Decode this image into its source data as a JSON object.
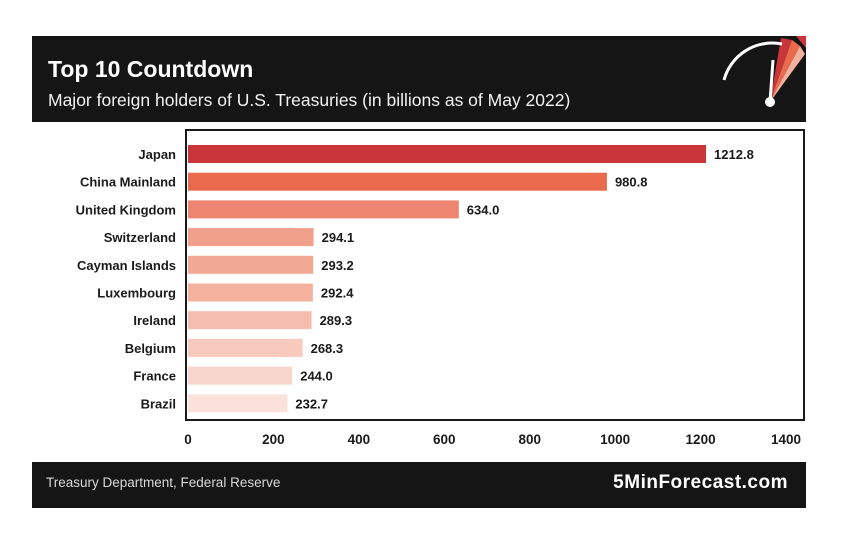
{
  "header": {
    "title": "Top 10 Countdown",
    "subtitle": "Major foreign holders of U.S. Treasuries (in billions as of May 2022)"
  },
  "footer": {
    "source": "Treasury Department, Federal Reserve",
    "brand": "5MinForecast.com"
  },
  "chart_data": {
    "type": "bar",
    "orientation": "horizontal",
    "categories": [
      "Japan",
      "China Mainland",
      "United Kingdom",
      "Switzerland",
      "Cayman Islands",
      "Luxembourg",
      "Ireland",
      "Belgium",
      "France",
      "Brazil"
    ],
    "values": [
      1212.8,
      980.8,
      634.0,
      294.1,
      293.2,
      292.4,
      289.3,
      268.3,
      244.0,
      232.7
    ],
    "value_labels": [
      "1212.8",
      "980.8",
      "634.0",
      "294.1",
      "293.2",
      "292.4",
      "289.3",
      "268.3",
      "244.0",
      "232.7"
    ],
    "bar_colors": [
      "#c8363c",
      "#ea6a4e",
      "#ee8570",
      "#f1a08c",
      "#f2a994",
      "#f3b19e",
      "#f5bdad",
      "#f7cabd",
      "#f8d6cb",
      "#fae2da"
    ],
    "xlim": [
      0,
      1400
    ],
    "x_ticks": [
      "0",
      "200",
      "400",
      "600",
      "800",
      "1000",
      "1200",
      "1400"
    ],
    "grid": false,
    "legend": "none"
  }
}
